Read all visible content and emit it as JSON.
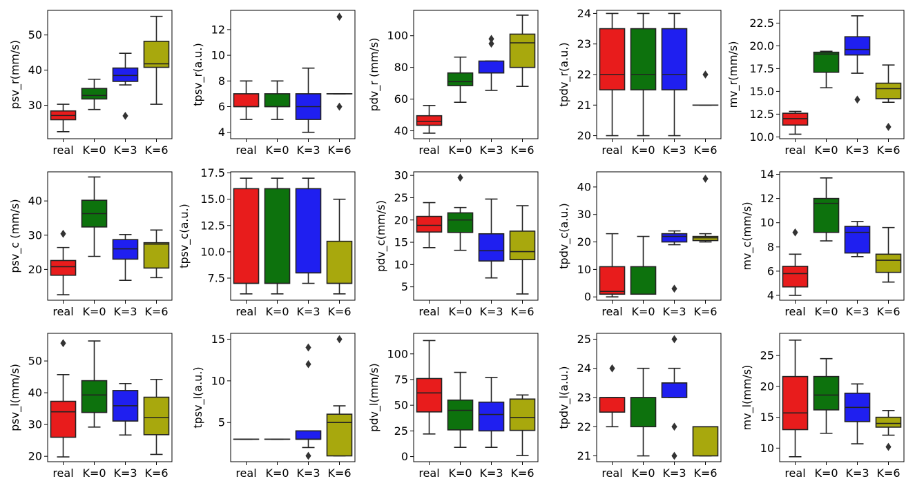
{
  "figure_title": "",
  "colors": {
    "real": "#e81c1c",
    "K=0": "#0d720d",
    "K=3": "#1f1ff0",
    "K=6": "#a8a80d"
  },
  "chart_data": [
    {
      "type": "box",
      "ylabel": "psv_r(mm/s)",
      "categories": [
        "real",
        "K=0",
        "K=3",
        "K=6"
      ],
      "ylim": [
        20.5,
        57
      ],
      "yticks": [
        30,
        40,
        50
      ],
      "boxes": [
        {
          "q1": 25.9,
          "med": 27.1,
          "q3": 28.4,
          "wlo": 22.5,
          "whi": 30.3,
          "fliers": []
        },
        {
          "q1": 31.8,
          "med": 32.8,
          "q3": 34.8,
          "wlo": 28.8,
          "whi": 37.4,
          "fliers": []
        },
        {
          "q1": 36.8,
          "med": 38.5,
          "q3": 40.6,
          "wlo": 35.8,
          "whi": 44.8,
          "fliers": [
            27.0
          ]
        },
        {
          "q1": 40.8,
          "med": 41.8,
          "q3": 48.2,
          "wlo": 30.3,
          "whi": 55.3,
          "fliers": []
        }
      ]
    },
    {
      "type": "box",
      "ylabel": "tpsv_r(a.u.)",
      "categories": [
        "real",
        "K=0",
        "K=3",
        "K=6"
      ],
      "ylim": [
        3.5,
        13.5
      ],
      "yticks": [
        4,
        6,
        8,
        10,
        12
      ],
      "boxes": [
        {
          "q1": 6,
          "med": 6,
          "q3": 7,
          "wlo": 5,
          "whi": 8,
          "fliers": []
        },
        {
          "q1": 6,
          "med": 6,
          "q3": 7,
          "wlo": 5,
          "whi": 8,
          "fliers": []
        },
        {
          "q1": 5,
          "med": 6,
          "q3": 7,
          "wlo": 4,
          "whi": 9,
          "fliers": []
        },
        {
          "q1": 7,
          "med": 7,
          "q3": 7,
          "wlo": 7,
          "whi": 7,
          "fliers": [
            13,
            6
          ]
        }
      ]
    },
    {
      "type": "box",
      "ylabel": "pdv_r (mm/s)",
      "categories": [
        "real",
        "K=0",
        "K=3",
        "K=6"
      ],
      "ylim": [
        35,
        116
      ],
      "yticks": [
        40,
        60,
        80,
        100
      ],
      "boxes": [
        {
          "q1": 43.5,
          "med": 46,
          "q3": 49.5,
          "wlo": 38.5,
          "whi": 56,
          "fliers": []
        },
        {
          "q1": 68.5,
          "med": 71,
          "q3": 76.5,
          "wlo": 58,
          "whi": 86.5,
          "fliers": []
        },
        {
          "q1": 76.5,
          "med": 76.5,
          "q3": 84,
          "wlo": 65.5,
          "whi": 84,
          "fliers": [
            95,
            98
          ]
        },
        {
          "q1": 80,
          "med": 95.5,
          "q3": 101,
          "wlo": 68,
          "whi": 113,
          "fliers": []
        }
      ]
    },
    {
      "type": "box",
      "ylabel": "tpdv_r(a.u.)",
      "categories": [
        "real",
        "K=0",
        "K=3",
        "K=6"
      ],
      "ylim": [
        19.9,
        24.1
      ],
      "yticks": [
        20,
        21,
        22,
        23,
        24
      ],
      "boxes": [
        {
          "q1": 21.5,
          "med": 22,
          "q3": 23.5,
          "wlo": 20,
          "whi": 24,
          "fliers": []
        },
        {
          "q1": 21.5,
          "med": 22,
          "q3": 23.5,
          "wlo": 20,
          "whi": 24,
          "fliers": []
        },
        {
          "q1": 21.5,
          "med": 22,
          "q3": 23.5,
          "wlo": 20,
          "whi": 24,
          "fliers": []
        },
        {
          "q1": 21,
          "med": 21,
          "q3": 21,
          "wlo": 21,
          "whi": 21,
          "fliers": [
            22
          ]
        }
      ]
    },
    {
      "type": "box",
      "ylabel": "mv_r(mm/s)",
      "categories": [
        "real",
        "K=0",
        "K=3",
        "K=6"
      ],
      "ylim": [
        9.8,
        23.9
      ],
      "yticks": [
        10.0,
        12.5,
        15.0,
        17.5,
        20.0,
        22.5
      ],
      "ytick_labels": [
        "10.0",
        "12.5",
        "15.0",
        "17.5",
        "20.0",
        "22.5"
      ],
      "boxes": [
        {
          "q1": 11.3,
          "med": 12.0,
          "q3": 12.6,
          "wlo": 10.3,
          "whi": 12.8,
          "fliers": []
        },
        {
          "q1": 17.1,
          "med": 19.1,
          "q3": 19.3,
          "wlo": 15.4,
          "whi": 19.4,
          "fliers": []
        },
        {
          "q1": 19.0,
          "med": 19.6,
          "q3": 21.0,
          "wlo": 17.0,
          "whi": 23.3,
          "fliers": [
            14.1
          ]
        },
        {
          "q1": 14.2,
          "med": 15.3,
          "q3": 15.9,
          "wlo": 13.8,
          "whi": 17.9,
          "fliers": [
            11.1
          ]
        }
      ]
    },
    {
      "type": "box",
      "ylabel": "psv_c (mm/s)",
      "categories": [
        "real",
        "K=0",
        "K=3",
        "K=6"
      ],
      "ylim": [
        11,
        48.5
      ],
      "yticks": [
        20,
        30,
        40
      ],
      "boxes": [
        {
          "q1": 18.3,
          "med": 20.8,
          "q3": 22.6,
          "wlo": 12.6,
          "whi": 26.4,
          "fliers": [
            30.4
          ]
        },
        {
          "q1": 32.4,
          "med": 36.3,
          "q3": 40.2,
          "wlo": 23.8,
          "whi": 47.0,
          "fliers": []
        },
        {
          "q1": 23.0,
          "med": 26.0,
          "q3": 28.7,
          "wlo": 16.8,
          "whi": 30.2,
          "fliers": []
        },
        {
          "q1": 20.4,
          "med": 27.4,
          "q3": 27.8,
          "wlo": 17.6,
          "whi": 31.5,
          "fliers": []
        }
      ]
    },
    {
      "type": "box",
      "ylabel": "tpsv_c(a.u.)",
      "categories": [
        "real",
        "K=0",
        "K=3",
        "K=6"
      ],
      "ylim": [
        5.4,
        17.6
      ],
      "yticks": [
        7.5,
        10.0,
        12.5,
        15.0,
        17.5
      ],
      "ytick_labels": [
        "7.5",
        "10.0",
        "12.5",
        "15.0",
        "17.5"
      ],
      "boxes": [
        {
          "q1": 7,
          "med": 7,
          "q3": 16,
          "wlo": 6,
          "whi": 17,
          "fliers": []
        },
        {
          "q1": 7,
          "med": 7,
          "q3": 16,
          "wlo": 6,
          "whi": 17,
          "fliers": []
        },
        {
          "q1": 8,
          "med": 8,
          "q3": 16,
          "wlo": 7,
          "whi": 17,
          "fliers": []
        },
        {
          "q1": 7,
          "med": 7,
          "q3": 11,
          "wlo": 6,
          "whi": 15,
          "fliers": []
        }
      ]
    },
    {
      "type": "box",
      "ylabel": "pdv_c(mm/s)",
      "categories": [
        "real",
        "K=0",
        "K=3",
        "K=6"
      ],
      "ylim": [
        2,
        30.8
      ],
      "yticks": [
        5,
        10,
        15,
        20,
        25,
        30
      ],
      "boxes": [
        {
          "q1": 17.3,
          "med": 18.8,
          "q3": 20.8,
          "wlo": 13.8,
          "whi": 23.9,
          "fliers": []
        },
        {
          "q1": 17.2,
          "med": 20.0,
          "q3": 21.6,
          "wlo": 13.2,
          "whi": 22.8,
          "fliers": [
            29.5
          ]
        },
        {
          "q1": 10.8,
          "med": 13.1,
          "q3": 16.9,
          "wlo": 7.0,
          "whi": 24.7,
          "fliers": []
        },
        {
          "q1": 11.1,
          "med": 12.9,
          "q3": 17.5,
          "wlo": 3.4,
          "whi": 23.2,
          "fliers": []
        }
      ]
    },
    {
      "type": "box",
      "ylabel": "tpdv_c(a.u.)",
      "categories": [
        "real",
        "K=0",
        "K=3",
        "K=6"
      ],
      "ylim": [
        -1.2,
        45.5
      ],
      "yticks": [
        0,
        10,
        20,
        30,
        40
      ],
      "boxes": [
        {
          "q1": 1,
          "med": 2,
          "q3": 11,
          "wlo": 0,
          "whi": 23,
          "fliers": []
        },
        {
          "q1": 1,
          "med": 1,
          "q3": 11,
          "wlo": 1,
          "whi": 22,
          "fliers": []
        },
        {
          "q1": 20,
          "med": 22,
          "q3": 23,
          "wlo": 19,
          "whi": 24,
          "fliers": [
            3
          ]
        },
        {
          "q1": 20.5,
          "med": 21.5,
          "q3": 22,
          "wlo": 20,
          "whi": 23,
          "fliers": [
            43
          ]
        }
      ]
    },
    {
      "type": "box",
      "ylabel": "mv_c(mm/s)",
      "categories": [
        "real",
        "K=0",
        "K=3",
        "K=6"
      ],
      "ylim": [
        3.6,
        14.2
      ],
      "yticks": [
        4,
        6,
        8,
        10,
        12,
        14
      ],
      "boxes": [
        {
          "q1": 4.7,
          "med": 5.8,
          "q3": 6.4,
          "wlo": 4.0,
          "whi": 7.4,
          "fliers": [
            9.2
          ]
        },
        {
          "q1": 9.2,
          "med": 11.6,
          "q3": 12.0,
          "wlo": 8.5,
          "whi": 13.7,
          "fliers": []
        },
        {
          "q1": 7.5,
          "med": 9.2,
          "q3": 9.7,
          "wlo": 7.2,
          "whi": 10.1,
          "fliers": []
        },
        {
          "q1": 5.9,
          "med": 6.9,
          "q3": 7.4,
          "wlo": 5.1,
          "whi": 9.6,
          "fliers": []
        }
      ]
    },
    {
      "type": "box",
      "ylabel": "psv_l(mm/s)",
      "categories": [
        "real",
        "K=0",
        "K=3",
        "K=6"
      ],
      "ylim": [
        18.3,
        58.7
      ],
      "yticks": [
        20,
        30,
        40,
        50
      ],
      "boxes": [
        {
          "q1": 26.0,
          "med": 34.0,
          "q3": 37.3,
          "wlo": 19.8,
          "whi": 45.7,
          "fliers": [
            55.6
          ]
        },
        {
          "q1": 33.8,
          "med": 39.3,
          "q3": 43.8,
          "wlo": 29.2,
          "whi": 56.3,
          "fliers": []
        },
        {
          "q1": 31.1,
          "med": 35.9,
          "q3": 40.7,
          "wlo": 26.7,
          "whi": 42.9,
          "fliers": []
        },
        {
          "q1": 26.8,
          "med": 32.2,
          "q3": 38.6,
          "wlo": 20.6,
          "whi": 44.2,
          "fliers": []
        }
      ]
    },
    {
      "type": "box",
      "ylabel": "tpsv_l(a.u.)",
      "categories": [
        "real",
        "K=0",
        "K=3",
        "K=6"
      ],
      "ylim": [
        0.3,
        15.7
      ],
      "yticks": [
        5,
        10,
        15
      ],
      "boxes": [
        {
          "q1": 3,
          "med": 3,
          "q3": 3,
          "wlo": 3,
          "whi": 3,
          "fliers": []
        },
        {
          "q1": 3,
          "med": 3,
          "q3": 3,
          "wlo": 3,
          "whi": 3,
          "fliers": []
        },
        {
          "q1": 3,
          "med": 3,
          "q3": 4,
          "wlo": 2,
          "whi": 4,
          "fliers": [
            14,
            12,
            1
          ]
        },
        {
          "q1": 1,
          "med": 5,
          "q3": 6,
          "wlo": 1,
          "whi": 7,
          "fliers": [
            15
          ]
        }
      ]
    },
    {
      "type": "box",
      "ylabel": "pdv_l(mm/s)",
      "categories": [
        "real",
        "K=0",
        "K=3",
        "K=6"
      ],
      "ylim": [
        -5,
        120
      ],
      "yticks": [
        0,
        25,
        50,
        75,
        100
      ],
      "boxes": [
        {
          "q1": 43.5,
          "med": 62,
          "q3": 76,
          "wlo": 22,
          "whi": 113,
          "fliers": []
        },
        {
          "q1": 26,
          "med": 45,
          "q3": 55,
          "wlo": 9,
          "whi": 82,
          "fliers": []
        },
        {
          "q1": 25,
          "med": 41,
          "q3": 53,
          "wlo": 9,
          "whi": 77,
          "fliers": []
        },
        {
          "q1": 25.5,
          "med": 38,
          "q3": 56,
          "wlo": 1,
          "whi": 60,
          "fliers": []
        }
      ]
    },
    {
      "type": "box",
      "ylabel": "tpdv_l(a.u.)",
      "categories": [
        "real",
        "K=0",
        "K=3",
        "K=6"
      ],
      "ylim": [
        20.8,
        25.2
      ],
      "yticks": [
        21,
        22,
        23,
        24,
        25
      ],
      "boxes": [
        {
          "q1": 22.5,
          "med": 23,
          "q3": 23,
          "wlo": 22,
          "whi": 23,
          "fliers": [
            24
          ]
        },
        {
          "q1": 22,
          "med": 23,
          "q3": 23,
          "wlo": 21,
          "whi": 24,
          "fliers": []
        },
        {
          "q1": 23,
          "med": 23.5,
          "q3": 23.5,
          "wlo": 23,
          "whi": 24,
          "fliers": [
            25,
            22,
            21
          ]
        },
        {
          "q1": 21,
          "med": 22,
          "q3": 22,
          "wlo": 21,
          "whi": 22,
          "fliers": []
        }
      ]
    },
    {
      "type": "box",
      "ylabel": "mv_l(mm/s)",
      "categories": [
        "real",
        "K=0",
        "K=3",
        "K=6"
      ],
      "ylim": [
        7.8,
        28.6
      ],
      "yticks": [
        10,
        15,
        20,
        25
      ],
      "boxes": [
        {
          "q1": 13.0,
          "med": 15.7,
          "q3": 21.6,
          "wlo": 8.6,
          "whi": 27.5,
          "fliers": []
        },
        {
          "q1": 16.2,
          "med": 18.6,
          "q3": 21.6,
          "wlo": 12.4,
          "whi": 24.5,
          "fliers": []
        },
        {
          "q1": 14.3,
          "med": 16.6,
          "q3": 18.9,
          "wlo": 10.7,
          "whi": 20.4,
          "fliers": []
        },
        {
          "q1": 13.4,
          "med": 14.0,
          "q3": 15.0,
          "wlo": 12.1,
          "whi": 16.1,
          "fliers": [
            10.2
          ]
        }
      ]
    }
  ]
}
